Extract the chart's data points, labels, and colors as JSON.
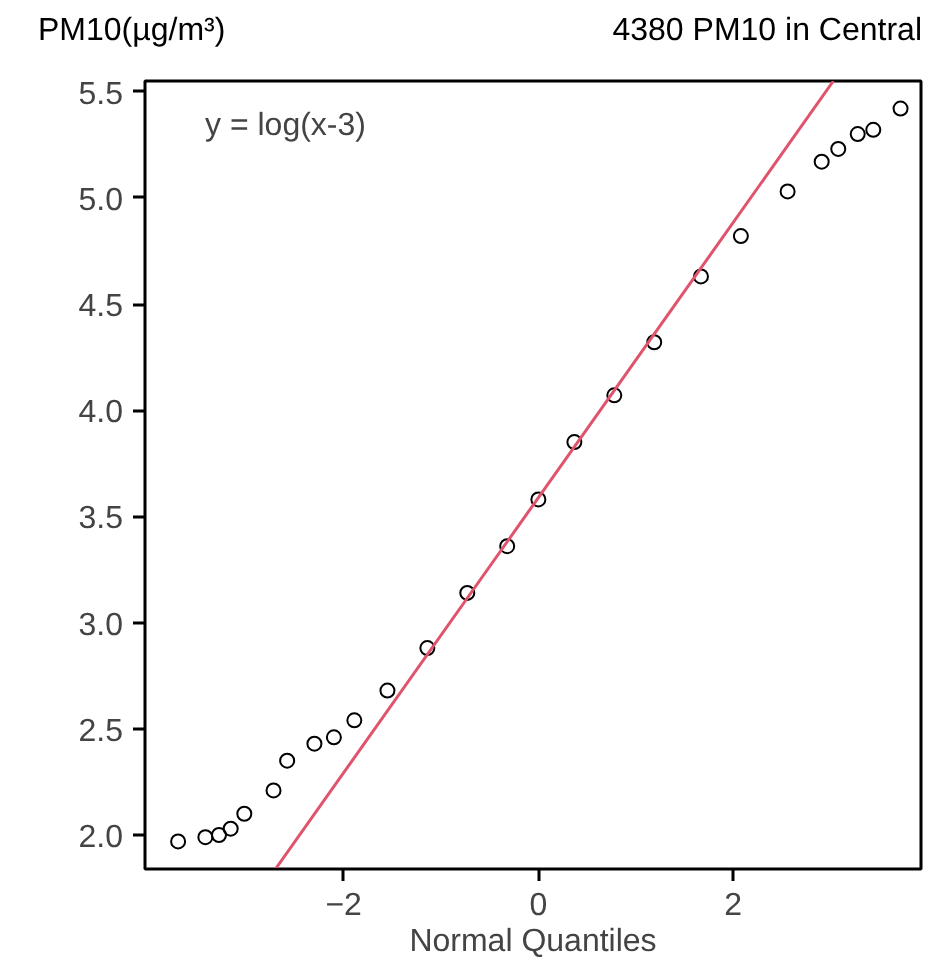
{
  "chart_data": {
    "type": "scatter",
    "title": "4380 PM10 in Central",
    "xlabel": "Normal Quantiles",
    "ylabel": "PM10(µg/m³)",
    "annotations": [
      "y = log(x-3)"
    ],
    "marker": "circle",
    "xlim": [
      -4.04,
      3.93
    ],
    "xticks": [
      -2,
      0,
      2
    ],
    "ylim": [
      1.84,
      5.55
    ],
    "yticks": [
      {
        "value": 2,
        "label": "2.0"
      },
      {
        "value": 2.5,
        "label": "2.5"
      },
      {
        "value": 3,
        "label": "3.0"
      },
      {
        "value": 3.5,
        "label": "3.5"
      },
      {
        "value": 4,
        "label": "4.0"
      },
      {
        "value": 4.5,
        "label": "4.5"
      },
      {
        "value": 5,
        "label": "5.0"
      },
      {
        "value": 5.5,
        "label": "5.5"
      }
    ],
    "series": [
      {
        "color": "#000000",
        "x": [
          -3.7,
          -3.42,
          -3.28,
          -3.16,
          -3.02,
          -2.72,
          -2.58,
          -2.3,
          -2.1,
          -1.89,
          -1.55,
          -1.14,
          -0.73,
          -0.32,
          0.0,
          0.37,
          0.78,
          1.19,
          1.67,
          2.08,
          2.56,
          2.91,
          3.08,
          3.28,
          3.44,
          3.72
        ],
        "values": [
          1.97,
          1.99,
          2.0,
          2.03,
          2.1,
          2.21,
          2.35,
          2.43,
          2.46,
          2.54,
          2.68,
          2.88,
          3.14,
          3.36,
          3.58,
          3.85,
          4.07,
          4.32,
          4.63,
          4.82,
          5.03,
          5.17,
          5.23,
          5.3,
          5.32,
          5.42
        ]
      },
      {
        "type": "line",
        "marker": "none",
        "color": "#df536b",
        "x": [
          -2.7,
          3.03
        ],
        "values": [
          1.84,
          5.55
        ]
      }
    ]
  }
}
